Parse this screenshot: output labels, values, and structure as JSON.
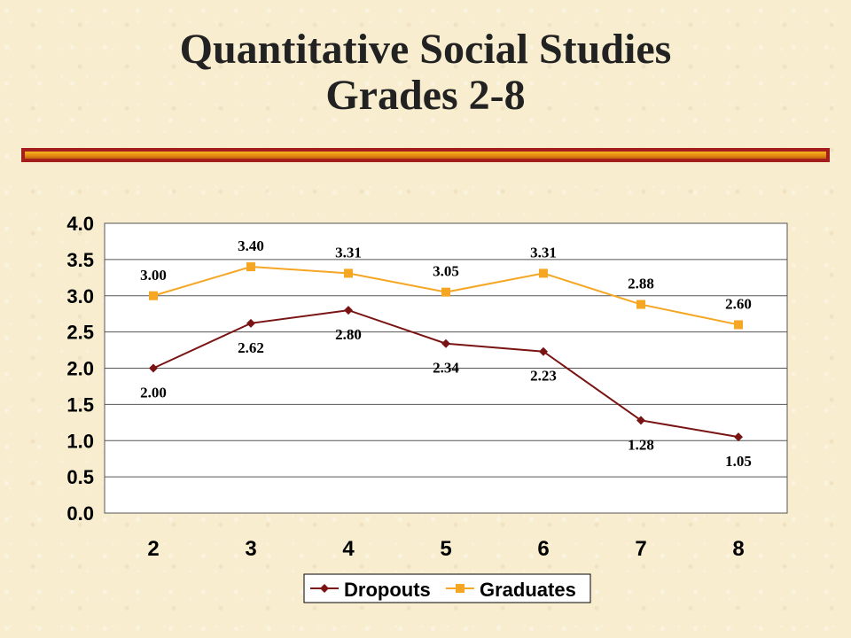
{
  "slide": {
    "title_line1": "Quantitative Social Studies",
    "title_line2": "Grades 2-8"
  },
  "colors": {
    "background": "#f8edcf",
    "divider_border": "#a41e1e",
    "divider_fill": "#f0a018",
    "dropouts": "#7a1414",
    "graduates": "#f5a623"
  },
  "chart_data": {
    "type": "line",
    "categories": [
      "2",
      "3",
      "4",
      "5",
      "6",
      "7",
      "8"
    ],
    "ylim": [
      0,
      4
    ],
    "yticks": [
      "0.0",
      "0.5",
      "1.0",
      "1.5",
      "2.0",
      "2.5",
      "3.0",
      "3.5",
      "4.0"
    ],
    "grid": true,
    "legend_position": "bottom",
    "series": [
      {
        "name": "Dropouts",
        "marker": "diamond",
        "values": [
          2.0,
          2.62,
          2.8,
          2.34,
          2.23,
          1.28,
          1.05
        ],
        "labels": [
          "2.00",
          "2.62",
          "2.80",
          "2.34",
          "2.23",
          "1.28",
          "1.05"
        ]
      },
      {
        "name": "Graduates",
        "marker": "square",
        "values": [
          3.0,
          3.4,
          3.31,
          3.05,
          3.31,
          2.88,
          2.6
        ],
        "labels": [
          "3.00",
          "3.40",
          "3.31",
          "3.05",
          "3.31",
          "2.88",
          "2.60"
        ]
      }
    ]
  }
}
